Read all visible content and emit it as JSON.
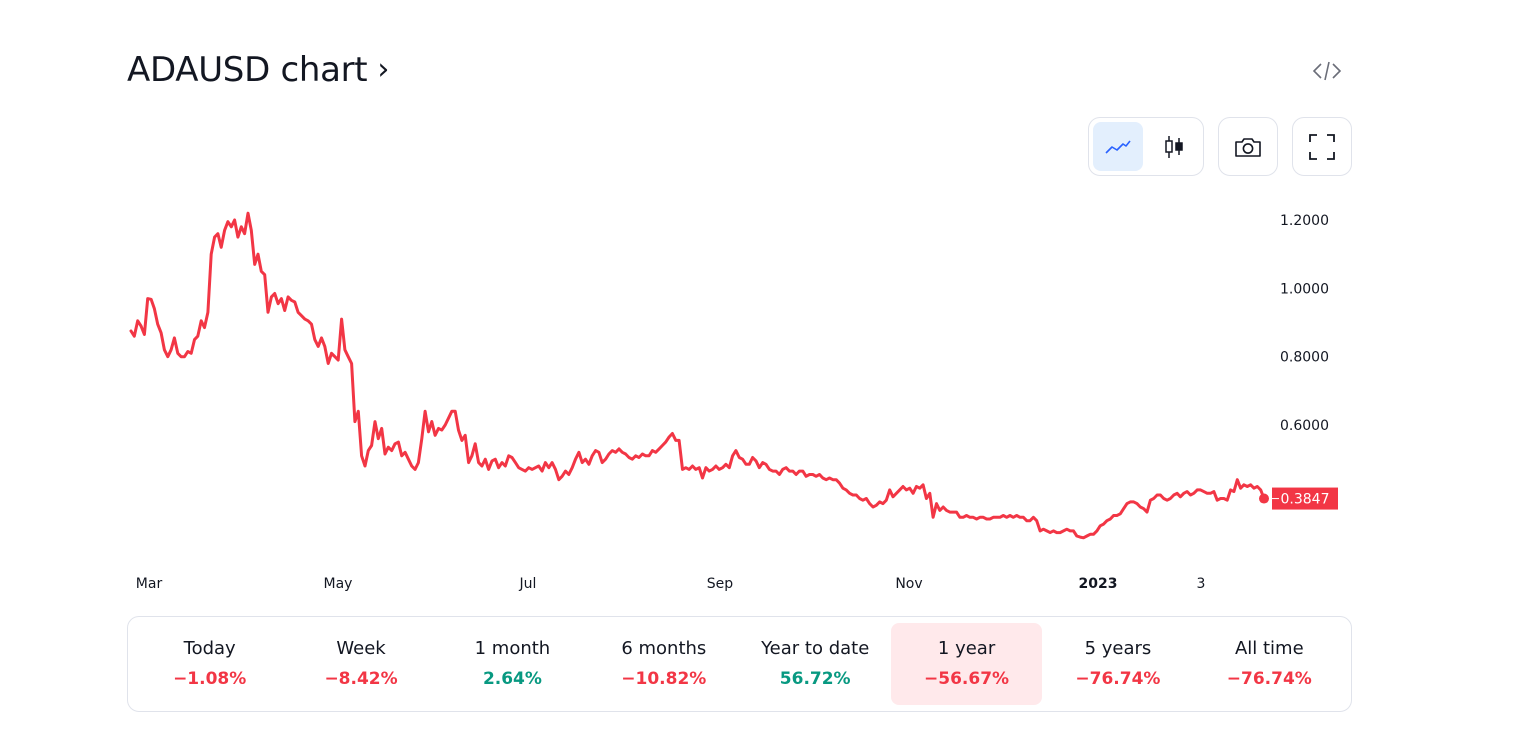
{
  "header": {
    "title": "ADAUSD chart",
    "title_chevron": "›"
  },
  "toolbar": {
    "chart_style_buttons": [
      {
        "icon": "line-chart-icon",
        "active": true
      },
      {
        "icon": "candlestick-icon",
        "active": false
      }
    ],
    "screenshot_icon": "camera-icon",
    "fullscreen_icon": "fullscreen-icon",
    "embed_icon": "code-embed-icon"
  },
  "chart_data": {
    "type": "line",
    "line_color": "#f23645",
    "y_ticks": [
      "1.2000",
      "1.0000",
      "0.8000",
      "0.6000"
    ],
    "y_tick_values": [
      1.2,
      1.0,
      0.8,
      0.6
    ],
    "x_labels": [
      {
        "label": "Mar",
        "bold": false
      },
      {
        "label": "May",
        "bold": false
      },
      {
        "label": "Jul",
        "bold": false
      },
      {
        "label": "Sep",
        "bold": false
      },
      {
        "label": "Nov",
        "bold": false
      },
      {
        "label": "2023",
        "bold": true
      },
      {
        "label": "3",
        "bold": false
      }
    ],
    "x_start": "2022-02-22",
    "x_end": "2023-02-21",
    "ylim": [
      0.25,
      1.25
    ],
    "last_value_label": "0.3847",
    "last_value": 0.3847,
    "series": [
      {
        "values": [
          0.875,
          0.86,
          0.905,
          0.89,
          0.865,
          0.97,
          0.968,
          0.94,
          0.895,
          0.87,
          0.82,
          0.8,
          0.82,
          0.855,
          0.81,
          0.8,
          0.8,
          0.815,
          0.81,
          0.85,
          0.86,
          0.905,
          0.885,
          0.93,
          1.1,
          1.15,
          1.16,
          1.12,
          1.17,
          1.195,
          1.18,
          1.2,
          1.15,
          1.18,
          1.16,
          1.22,
          1.17,
          1.07,
          1.1,
          1.05,
          1.04,
          0.93,
          0.975,
          0.985,
          0.955,
          0.97,
          0.935,
          0.975,
          0.965,
          0.96,
          0.93,
          0.92,
          0.91,
          0.905,
          0.895,
          0.85,
          0.83,
          0.855,
          0.83,
          0.78,
          0.81,
          0.8,
          0.79,
          0.91,
          0.82,
          0.8,
          0.78,
          0.61,
          0.64,
          0.51,
          0.48,
          0.525,
          0.54,
          0.61,
          0.56,
          0.59,
          0.515,
          0.535,
          0.525,
          0.545,
          0.55,
          0.51,
          0.52,
          0.5,
          0.48,
          0.47,
          0.49,
          0.56,
          0.64,
          0.58,
          0.61,
          0.57,
          0.59,
          0.585,
          0.6,
          0.62,
          0.64,
          0.64,
          0.585,
          0.555,
          0.57,
          0.49,
          0.51,
          0.545,
          0.49,
          0.48,
          0.5,
          0.47,
          0.495,
          0.5,
          0.475,
          0.49,
          0.48,
          0.51,
          0.505,
          0.49,
          0.475,
          0.47,
          0.465,
          0.475,
          0.47,
          0.475,
          0.48,
          0.465,
          0.49,
          0.475,
          0.49,
          0.47,
          0.44,
          0.45,
          0.465,
          0.455,
          0.475,
          0.5,
          0.52,
          0.49,
          0.5,
          0.485,
          0.51,
          0.525,
          0.52,
          0.49,
          0.5,
          0.515,
          0.525,
          0.52,
          0.53,
          0.52,
          0.515,
          0.505,
          0.5,
          0.51,
          0.505,
          0.515,
          0.51,
          0.51,
          0.525,
          0.52,
          0.53,
          0.54,
          0.55,
          0.565,
          0.575,
          0.555,
          0.555,
          0.47,
          0.475,
          0.47,
          0.48,
          0.47,
          0.475,
          0.445,
          0.475,
          0.465,
          0.47,
          0.48,
          0.47,
          0.475,
          0.485,
          0.475,
          0.51,
          0.525,
          0.505,
          0.5,
          0.485,
          0.485,
          0.505,
          0.495,
          0.475,
          0.49,
          0.485,
          0.47,
          0.465,
          0.465,
          0.455,
          0.47,
          0.475,
          0.465,
          0.465,
          0.455,
          0.465,
          0.465,
          0.45,
          0.455,
          0.455,
          0.45,
          0.455,
          0.445,
          0.44,
          0.445,
          0.44,
          0.44,
          0.43,
          0.415,
          0.41,
          0.4,
          0.395,
          0.395,
          0.385,
          0.38,
          0.385,
          0.37,
          0.36,
          0.365,
          0.375,
          0.37,
          0.38,
          0.41,
          0.39,
          0.4,
          0.41,
          0.42,
          0.41,
          0.415,
          0.4,
          0.42,
          0.415,
          0.425,
          0.385,
          0.4,
          0.33,
          0.37,
          0.35,
          0.36,
          0.35,
          0.345,
          0.345,
          0.345,
          0.33,
          0.33,
          0.335,
          0.33,
          0.33,
          0.325,
          0.33,
          0.33,
          0.325,
          0.325,
          0.33,
          0.33,
          0.33,
          0.335,
          0.33,
          0.335,
          0.33,
          0.335,
          0.33,
          0.33,
          0.32,
          0.32,
          0.33,
          0.32,
          0.29,
          0.295,
          0.29,
          0.285,
          0.29,
          0.285,
          0.285,
          0.29,
          0.295,
          0.29,
          0.29,
          0.275,
          0.272,
          0.27,
          0.275,
          0.28,
          0.28,
          0.29,
          0.305,
          0.31,
          0.32,
          0.325,
          0.335,
          0.335,
          0.34,
          0.355,
          0.37,
          0.375,
          0.375,
          0.37,
          0.36,
          0.355,
          0.345,
          0.38,
          0.385,
          0.395,
          0.395,
          0.385,
          0.38,
          0.385,
          0.395,
          0.4,
          0.39,
          0.4,
          0.405,
          0.395,
          0.4,
          0.41,
          0.41,
          0.405,
          0.4,
          0.4,
          0.405,
          0.38,
          0.385,
          0.385,
          0.38,
          0.41,
          0.405,
          0.44,
          0.415,
          0.425,
          0.42,
          0.425,
          0.415,
          0.42,
          0.41,
          0.3847
        ]
      }
    ]
  },
  "periods": [
    {
      "label": "Today",
      "value": "−1.08%",
      "trend": "neg",
      "active": false
    },
    {
      "label": "Week",
      "value": "−8.42%",
      "trend": "neg",
      "active": false
    },
    {
      "label": "1 month",
      "value": "2.64%",
      "trend": "pos",
      "active": false
    },
    {
      "label": "6 months",
      "value": "−10.82%",
      "trend": "neg",
      "active": false
    },
    {
      "label": "Year to date",
      "value": "56.72%",
      "trend": "pos",
      "active": false
    },
    {
      "label": "1 year",
      "value": "−56.67%",
      "trend": "neg",
      "active": true
    },
    {
      "label": "5 years",
      "value": "−76.74%",
      "trend": "neg",
      "active": false
    },
    {
      "label": "All time",
      "value": "−76.74%",
      "trend": "neg",
      "active": false
    }
  ]
}
